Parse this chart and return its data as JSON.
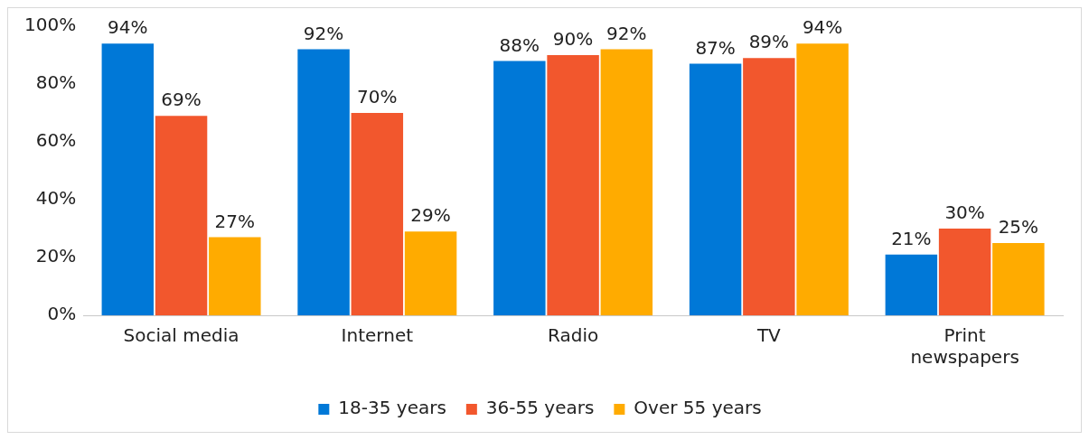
{
  "chart_data": {
    "type": "bar",
    "categories": [
      "Social media",
      "Internet",
      "Radio",
      "TV",
      "Print newspapers"
    ],
    "series": [
      {
        "name": "18-35 years",
        "color": "#0078d7",
        "values": [
          94,
          92,
          88,
          87,
          21
        ],
        "value_labels": [
          "94%",
          "92%",
          "88%",
          "87%",
          "21%"
        ]
      },
      {
        "name": "36-55 years",
        "color": "#f2572d",
        "values": [
          69,
          70,
          90,
          89,
          30
        ],
        "value_labels": [
          "69%",
          "70%",
          "90%",
          "89%",
          "30%"
        ]
      },
      {
        "name": "Over 55 years",
        "color": "#ffab00",
        "values": [
          27,
          29,
          92,
          94,
          25
        ],
        "value_labels": [
          "27%",
          "29%",
          "92%",
          "94%",
          "25%"
        ]
      }
    ],
    "ylim": [
      0,
      100
    ],
    "yticks": [
      {
        "value": 0,
        "label": "0%"
      },
      {
        "value": 20,
        "label": "20%"
      },
      {
        "value": 40,
        "label": "40%"
      },
      {
        "value": 60,
        "label": "60%"
      },
      {
        "value": 80,
        "label": "80%"
      },
      {
        "value": 100,
        "label": "100%"
      }
    ],
    "grid": false,
    "legend": "bottom"
  }
}
